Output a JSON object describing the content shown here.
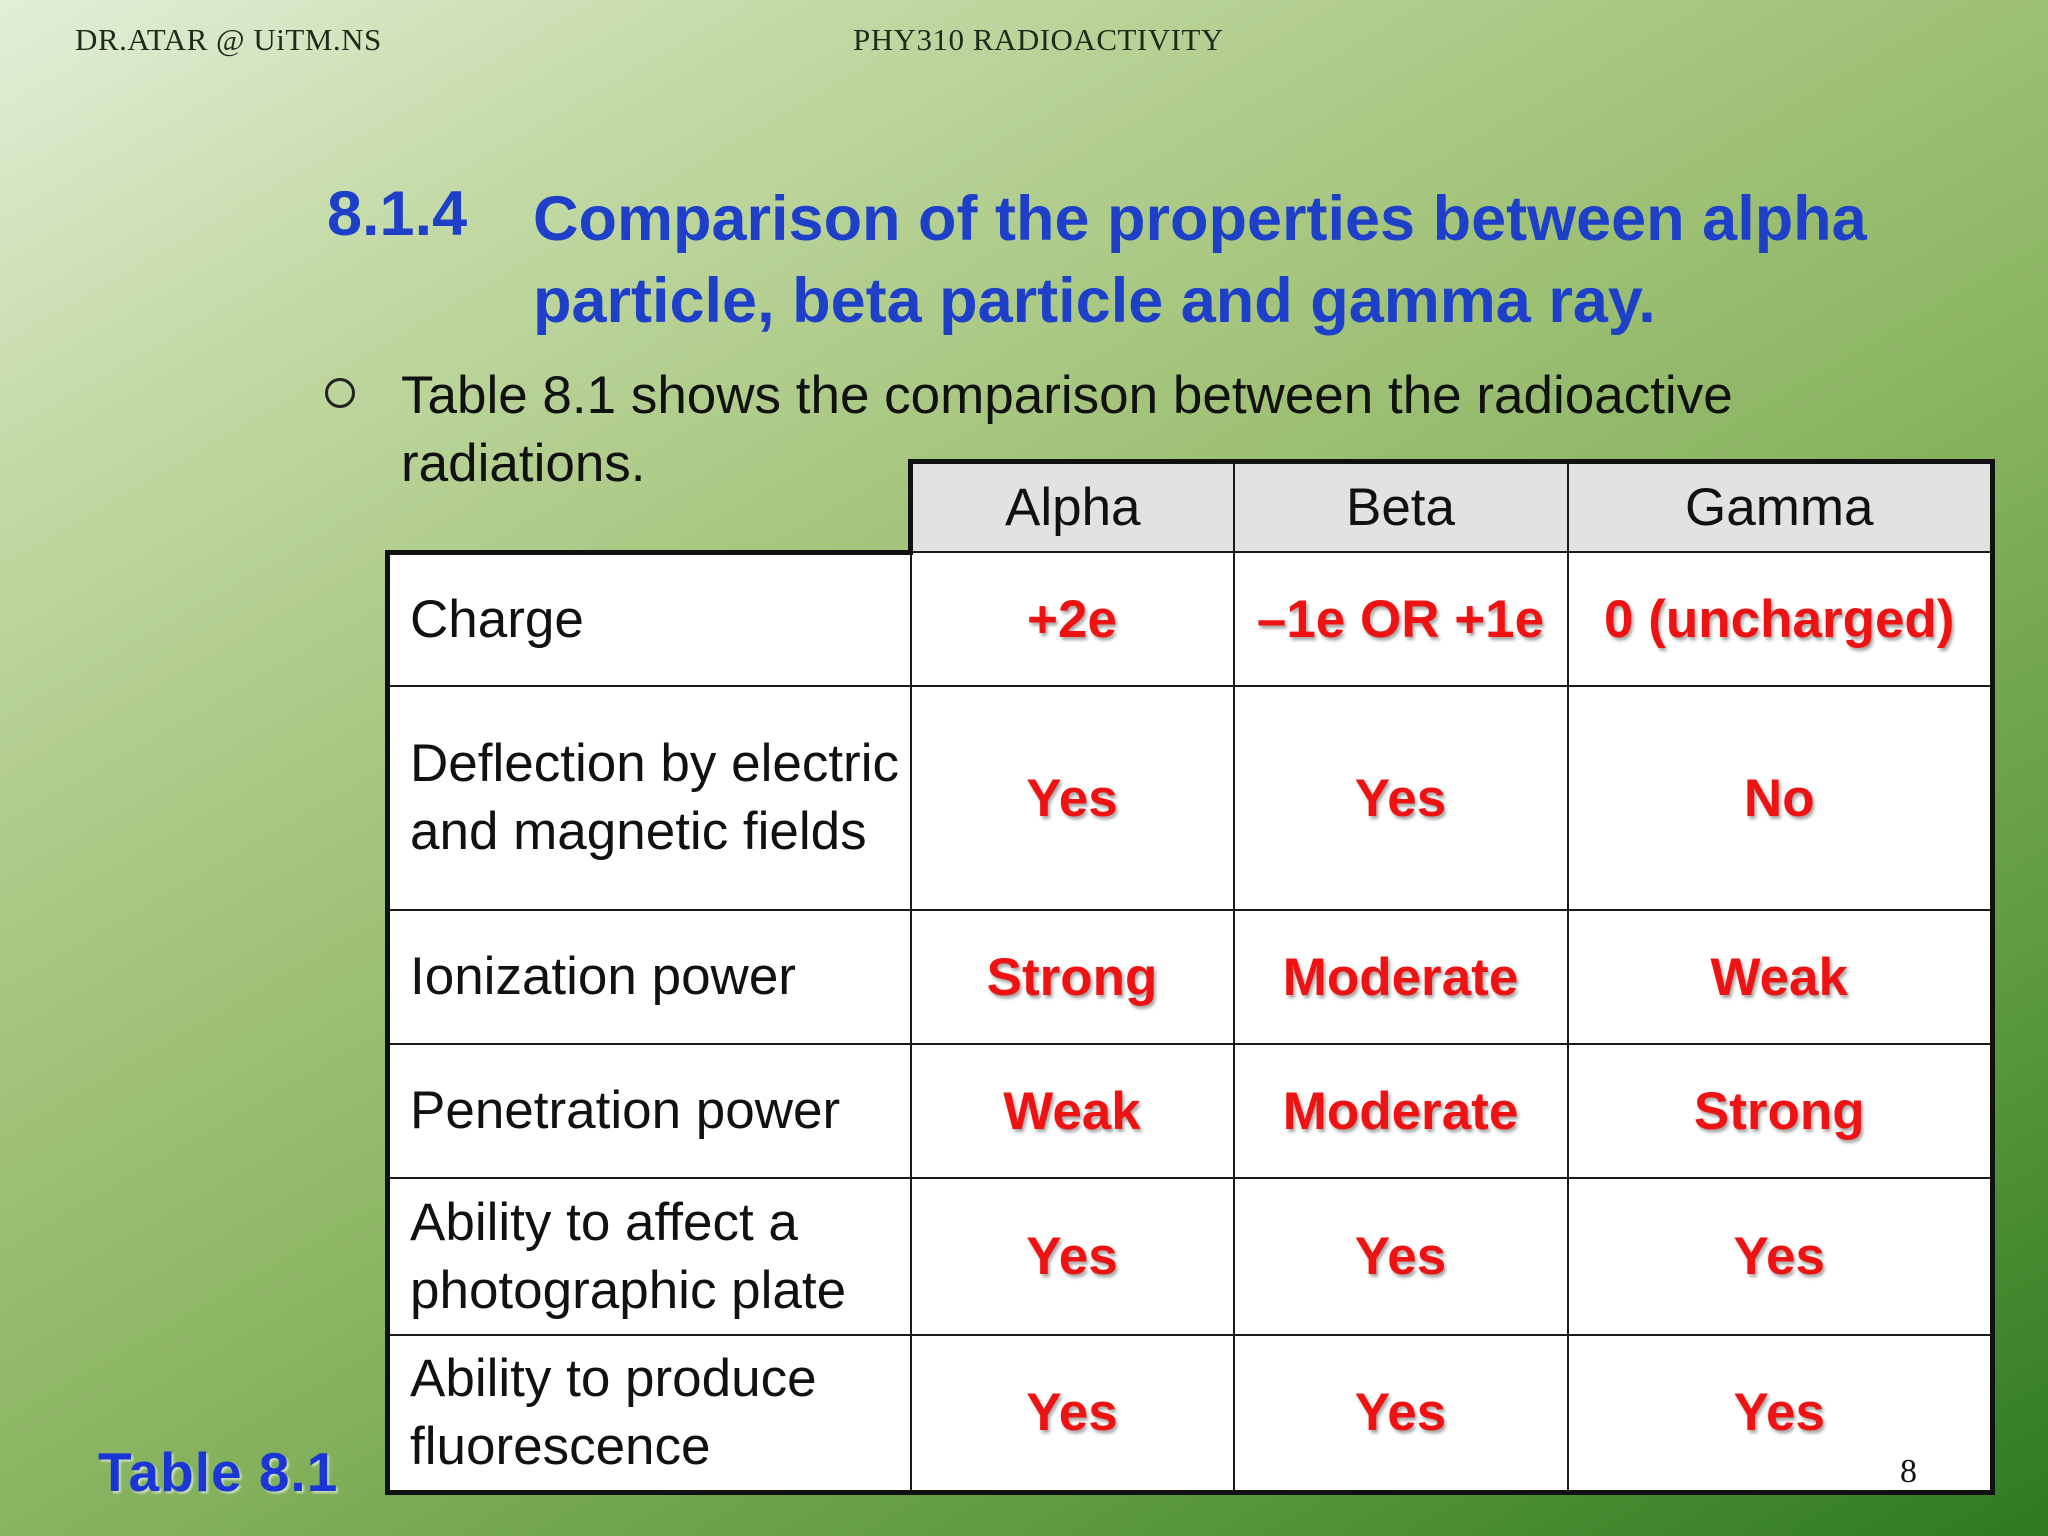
{
  "header": {
    "author": "DR.ATAR @ UiTM.NS",
    "course": "PHY310 RADIOACTIVITY"
  },
  "title": {
    "number": "8.1.4",
    "text": "Comparison of the properties between alpha particle, beta particle and gamma ray."
  },
  "bullet": {
    "text": "Table 8.1 shows the comparison between the radioactive radiations."
  },
  "table": {
    "columns": [
      "Alpha",
      "Beta",
      "Gamma"
    ],
    "rows": [
      {
        "label": "Charge",
        "values": [
          "+2e",
          "–1e OR +1e",
          "0 (uncharged)"
        ]
      },
      {
        "label": "Deflection by electric and magnetic fields",
        "values": [
          "Yes",
          "Yes",
          "No"
        ]
      },
      {
        "label": "Ionization power",
        "values": [
          "Strong",
          "Moderate",
          "Weak"
        ]
      },
      {
        "label": "Penetration power",
        "values": [
          "Weak",
          "Moderate",
          "Strong"
        ]
      },
      {
        "label": "Ability to affect a photographic plate",
        "values": [
          "Yes",
          "Yes",
          "Yes"
        ]
      },
      {
        "label": "Ability to produce fluorescence",
        "values": [
          "Yes",
          "Yes",
          "Yes"
        ]
      }
    ]
  },
  "caption": "Table  8.1",
  "page_number": "8",
  "colors": {
    "title": "#1e3fc8",
    "value_text": "#ee1212",
    "caption": "#1b36d6",
    "header_cell": "#e2e2e2"
  }
}
